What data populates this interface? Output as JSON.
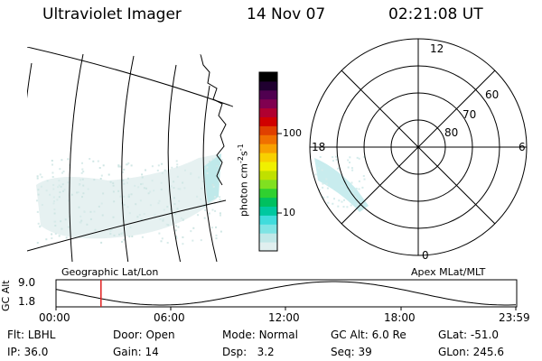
{
  "header": {
    "instrument": "Ultraviolet Imager",
    "date": "14 Nov 07",
    "time": "02:21:08 UT"
  },
  "colorbar": {
    "unit_label": "photon cm",
    "unit_exp1": "-2",
    "unit_s": "s",
    "unit_exp2": "-1",
    "ticks": [
      {
        "label": "100",
        "value": 100
      },
      {
        "label": "10",
        "value": 10
      }
    ],
    "colors": [
      "#e0efef",
      "#c0e8e8",
      "#7fe4e4",
      "#40dcdc",
      "#00c8a0",
      "#00c060",
      "#30d030",
      "#80e020",
      "#c0e000",
      "#f0f000",
      "#f8d000",
      "#f8a000",
      "#f07000",
      "#e04000",
      "#d00000",
      "#b00030",
      "#800050",
      "#500050",
      "#200030",
      "#000000"
    ]
  },
  "geo_panel": {
    "label": "Geographic Lat/Lon"
  },
  "polar_panel": {
    "label": "Apex MLat/MLT",
    "mlt_labels": [
      "12",
      "18",
      "6",
      "0"
    ],
    "lat_labels": [
      "60",
      "70",
      "80"
    ]
  },
  "orbit_plot": {
    "ylabel": "GC Alt",
    "yticks": [
      "9.0",
      "1.8"
    ],
    "xticks": [
      "00:00",
      "06:00",
      "12:00",
      "18:00",
      "23:59"
    ],
    "current_time_hours": 2.35,
    "marker_color": "#e02020"
  },
  "status": {
    "row1": [
      {
        "key": "Flt:",
        "value": "LBHL"
      },
      {
        "key": "Door:",
        "value": "Open"
      },
      {
        "key": "Mode:",
        "value": "Normal"
      },
      {
        "key": "GC Alt:",
        "value": "6.0 Re"
      },
      {
        "key": "GLat:",
        "value": "-51.0"
      }
    ],
    "row2": [
      {
        "key": "IP:",
        "value": "36.0"
      },
      {
        "key": "Gain:",
        "value": "14"
      },
      {
        "key": "Dsp:",
        "value": "3.2"
      },
      {
        "key": "Seq:",
        "value": "39"
      },
      {
        "key": "GLon:",
        "value": "245.6"
      }
    ]
  }
}
